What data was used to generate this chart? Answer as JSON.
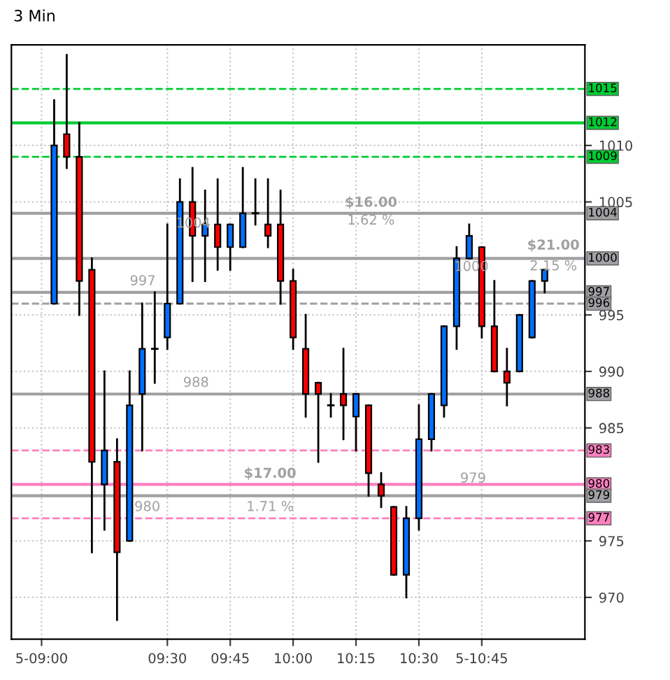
{
  "chart_data": {
    "type": "candlestick",
    "title": "3 Min",
    "x": [
      9.05,
      9.1,
      9.15,
      9.2,
      9.25,
      9.3,
      9.35,
      9.4,
      9.45,
      9.5,
      9.55,
      9.6,
      9.65,
      9.7,
      9.75,
      9.8,
      9.85,
      9.9,
      9.95,
      10.0,
      10.05,
      10.1,
      10.15,
      10.2,
      10.25,
      10.3,
      10.35,
      10.4,
      10.45,
      10.5,
      10.55,
      10.6,
      10.65,
      10.7,
      10.75,
      10.8,
      10.85,
      10.9,
      10.95,
      11.0
    ],
    "ohlc": [
      [
        996,
        1014,
        996,
        1010
      ],
      [
        1011,
        1018,
        1008,
        1009
      ],
      [
        1009,
        1012,
        995,
        998
      ],
      [
        999,
        1000,
        974,
        982
      ],
      [
        980,
        990,
        976,
        983
      ],
      [
        982,
        984,
        968,
        974
      ],
      [
        975,
        990,
        975,
        987
      ],
      [
        988,
        996,
        983,
        992
      ],
      [
        992,
        997,
        989,
        992
      ],
      [
        993,
        1003,
        992,
        996
      ],
      [
        996,
        1007,
        996,
        1005
      ],
      [
        1005,
        1008,
        998,
        1002
      ],
      [
        1002,
        1006,
        998,
        1003
      ],
      [
        1003,
        1007,
        999,
        1001
      ],
      [
        1001,
        1003,
        999,
        1003
      ],
      [
        1001,
        1008,
        1001,
        1004
      ],
      [
        1004,
        1007,
        1003,
        1004
      ],
      [
        1003,
        1007,
        1001,
        1002
      ],
      [
        1003,
        1006,
        996,
        998
      ],
      [
        998,
        999,
        992,
        993
      ],
      [
        992,
        995,
        986,
        988
      ],
      [
        989,
        989,
        982,
        988
      ],
      [
        987,
        988,
        986,
        987
      ],
      [
        988,
        992,
        984,
        987
      ],
      [
        986,
        988,
        983,
        988
      ],
      [
        987,
        987,
        979,
        981
      ],
      [
        980,
        981,
        978,
        979
      ],
      [
        978,
        978,
        972,
        972
      ],
      [
        972,
        978,
        970,
        977
      ],
      [
        977,
        987,
        976,
        984
      ],
      [
        984,
        988,
        983,
        988
      ],
      [
        987,
        994,
        986,
        994
      ],
      [
        994,
        1001,
        992,
        1000
      ],
      [
        1000,
        1003,
        1000,
        1002
      ],
      [
        1001,
        1001,
        993,
        994
      ],
      [
        994,
        998,
        990,
        990
      ],
      [
        990,
        992,
        987,
        989
      ],
      [
        990,
        995,
        990,
        995
      ],
      [
        993,
        998,
        993,
        998
      ],
      [
        998,
        999,
        997,
        999
      ]
    ],
    "colors": [
      "#0070ff",
      "#ff0000",
      "#ff0000",
      "#ff0000",
      "#0070ff",
      "#ff0000",
      "#0070ff",
      "#0070ff",
      "#000000",
      "#0070ff",
      "#0070ff",
      "#ff0000",
      "#0070ff",
      "#ff0000",
      "#0070ff",
      "#0070ff",
      "#000000",
      "#ff0000",
      "#ff0000",
      "#ff0000",
      "#ff0000",
      "#ff0000",
      "#000000",
      "#ff0000",
      "#0070ff",
      "#ff0000",
      "#ff0000",
      "#ff0000",
      "#0070ff",
      "#0070ff",
      "#0070ff",
      "#0070ff",
      "#0070ff",
      "#0070ff",
      "#ff0000",
      "#ff0000",
      "#ff0000",
      "#0070ff",
      "#0070ff",
      "#0070ff"
    ],
    "xlim": [
      8.88,
      11.16
    ],
    "ylim": [
      966.3,
      1018.9
    ],
    "xticks": [
      {
        "value": 9.0,
        "label": "5-09:00"
      },
      {
        "value": 9.5,
        "label": "09:30"
      },
      {
        "value": 9.75,
        "label": "09:45"
      },
      {
        "value": 10.0,
        "label": "10:00"
      },
      {
        "value": 10.25,
        "label": "10:15"
      },
      {
        "value": 10.5,
        "label": "10:30"
      },
      {
        "value": 10.75,
        "label": "5-10:45"
      }
    ],
    "yticks": [
      970,
      975,
      985,
      990,
      995,
      1005,
      1010
    ],
    "grid": true,
    "legend": false,
    "ref_lines": [
      {
        "axis": "y",
        "value": 1015,
        "label": "1015",
        "color": "#00cc33",
        "line_style": "dashed"
      },
      {
        "axis": "y",
        "value": 1012,
        "label": "1012",
        "color": "#00cc33",
        "line_style": "solid"
      },
      {
        "axis": "y",
        "value": 1009,
        "label": "1009",
        "color": "#00cc33",
        "line_style": "dashed"
      },
      {
        "axis": "y",
        "value": 1004,
        "label": "1004",
        "color": "#a0a0a4",
        "line_style": "solid"
      },
      {
        "axis": "y",
        "value": 1000,
        "label": "1000",
        "color": "#a0a0a4",
        "line_style": "solid"
      },
      {
        "axis": "y",
        "value": 997,
        "label": "997",
        "color": "#a0a0a4",
        "line_style": "solid"
      },
      {
        "axis": "y",
        "value": 996,
        "label": "996",
        "color": "#a0a0a4",
        "line_style": "dashed"
      },
      {
        "axis": "y",
        "value": 988,
        "label": "988",
        "color": "#a0a0a4",
        "line_style": "solid"
      },
      {
        "axis": "y",
        "value": 983,
        "label": "983",
        "color": "#ff80c0",
        "line_style": "dashed"
      },
      {
        "axis": "y",
        "value": 980,
        "label": "980",
        "color": "#ff80c0",
        "line_style": "solid"
      },
      {
        "axis": "y",
        "value": 979,
        "label": "979",
        "color": "#a0a0a4",
        "line_style": "solid"
      },
      {
        "axis": "y",
        "value": 977,
        "label": "977",
        "color": "#ff80c0",
        "line_style": "dashed"
      }
    ],
    "annotations": [
      "$16.00",
      "1.62 %",
      "$17.00",
      "1.71 %",
      "$21.00",
      "2.15 %",
      "997",
      "1004",
      "988",
      "980",
      "1000",
      "979"
    ]
  }
}
